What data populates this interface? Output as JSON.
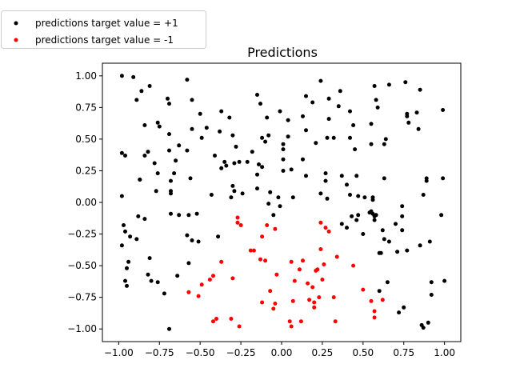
{
  "chart_data": {
    "type": "scatter",
    "title": "Predictions",
    "xlabel": "",
    "ylabel": "",
    "xlim": [
      -1.1,
      1.1
    ],
    "ylim": [
      -1.1,
      1.1
    ],
    "x_ticks": [
      -1.0,
      -0.75,
      -0.5,
      -0.25,
      0.0,
      0.25,
      0.5,
      0.75,
      1.0
    ],
    "x_tick_labels": [
      "−1.00",
      "−0.75",
      "−0.50",
      "−0.25",
      "0.00",
      "0.25",
      "0.50",
      "0.75",
      "1.00"
    ],
    "y_ticks": [
      1.0,
      0.75,
      0.5,
      0.25,
      0.0,
      -0.25,
      -0.5,
      -0.75,
      -1.0
    ],
    "y_tick_labels": [
      "1.00",
      "0.75",
      "0.50",
      "0.25",
      "0.00",
      "−0.25",
      "−0.50",
      "−0.75",
      "−1.00"
    ],
    "grid": false,
    "legend_position": "outside-top-left",
    "series": [
      {
        "name": "predictions target value = +1",
        "color": "#000000",
        "points": [
          [
            -0.98,
            1.0
          ],
          [
            -0.91,
            0.99
          ],
          [
            -0.81,
            0.92
          ],
          [
            -0.86,
            0.88
          ],
          [
            -0.89,
            0.81
          ],
          [
            -0.7,
            0.82
          ],
          [
            -0.58,
            0.97
          ],
          [
            -0.69,
            0.78
          ],
          [
            -0.55,
            0.81
          ],
          [
            -0.5,
            0.7
          ],
          [
            -0.76,
            0.63
          ],
          [
            -0.75,
            0.6
          ],
          [
            -0.84,
            0.61
          ],
          [
            -0.69,
            0.54
          ],
          [
            -0.55,
            0.58
          ],
          [
            -0.46,
            0.59
          ],
          [
            -0.37,
            0.72
          ],
          [
            -0.32,
            0.67
          ],
          [
            -0.38,
            0.56
          ],
          [
            -0.3,
            0.53
          ],
          [
            -0.15,
            0.85
          ],
          [
            -0.13,
            0.78
          ],
          [
            -0.09,
            0.67
          ],
          [
            -0.01,
            0.72
          ],
          [
            0.04,
            0.65
          ],
          [
            0.13,
            0.68
          ],
          [
            0.15,
            0.84
          ],
          [
            0.19,
            0.79
          ],
          [
            0.24,
            0.96
          ],
          [
            0.29,
            0.82
          ],
          [
            0.35,
            0.76
          ],
          [
            0.36,
            0.88
          ],
          [
            0.42,
            0.72
          ],
          [
            0.57,
            0.92
          ],
          [
            0.58,
            0.81
          ],
          [
            0.59,
            0.75
          ],
          [
            0.66,
            0.93
          ],
          [
            0.76,
            0.95
          ],
          [
            0.85,
            0.89
          ],
          [
            0.99,
            0.73
          ],
          [
            0.77,
            0.7
          ],
          [
            0.83,
            0.71
          ],
          [
            0.77,
            0.68
          ],
          [
            0.78,
            0.63
          ],
          [
            0.84,
            0.58
          ],
          [
            -0.98,
            0.39
          ],
          [
            -0.96,
            0.37
          ],
          [
            -0.84,
            0.37
          ],
          [
            -0.82,
            0.4
          ],
          [
            -0.78,
            0.31
          ],
          [
            -0.76,
            0.23
          ],
          [
            -0.87,
            0.18
          ],
          [
            -0.69,
            0.41
          ],
          [
            -0.63,
            0.45
          ],
          [
            -0.58,
            0.41
          ],
          [
            -0.65,
            0.33
          ],
          [
            -0.66,
            0.23
          ],
          [
            -0.68,
            0.17
          ],
          [
            -0.68,
            0.09
          ],
          [
            -0.68,
            0.07
          ],
          [
            -0.77,
            0.09
          ],
          [
            -0.49,
            0.51
          ],
          [
            -0.41,
            0.37
          ],
          [
            -0.37,
            0.27
          ],
          [
            -0.35,
            0.32
          ],
          [
            -0.34,
            0.29
          ],
          [
            -0.29,
            0.31
          ],
          [
            -0.26,
            0.32
          ],
          [
            -0.28,
            0.44
          ],
          [
            -0.21,
            0.32
          ],
          [
            -0.18,
            0.4
          ],
          [
            -0.12,
            0.51
          ],
          [
            -0.1,
            0.48
          ],
          [
            -0.08,
            0.53
          ],
          [
            -0.14,
            0.3
          ],
          [
            -0.12,
            0.28
          ],
          [
            -0.15,
            0.22
          ],
          [
            0.01,
            0.46
          ],
          [
            0.01,
            0.42
          ],
          [
            0.01,
            0.34
          ],
          [
            0.01,
            0.25
          ],
          [
            0.06,
            0.26
          ],
          [
            0.04,
            0.52
          ],
          [
            0.15,
            0.57
          ],
          [
            0.21,
            0.47
          ],
          [
            0.28,
            0.51
          ],
          [
            0.32,
            0.51
          ],
          [
            0.29,
            0.66
          ],
          [
            0.42,
            0.51
          ],
          [
            0.45,
            0.42
          ],
          [
            0.55,
            0.46
          ],
          [
            0.55,
            0.62
          ],
          [
            0.63,
            0.46
          ],
          [
            0.64,
            0.5
          ],
          [
            0.44,
            0.61
          ],
          [
            0.13,
            0.34
          ],
          [
            0.15,
            0.21
          ],
          [
            0.27,
            0.23
          ],
          [
            0.27,
            0.17
          ],
          [
            0.37,
            0.21
          ],
          [
            0.4,
            0.14
          ],
          [
            0.46,
            0.21
          ],
          [
            -0.98,
            0.05
          ],
          [
            -0.87,
            0.18
          ],
          [
            -0.56,
            0.19
          ],
          [
            -0.43,
            0.06
          ],
          [
            -0.31,
            0.04
          ],
          [
            -0.3,
            0.13
          ],
          [
            -0.29,
            0.09
          ],
          [
            -0.24,
            0.07
          ],
          [
            -0.15,
            0.11
          ],
          [
            -0.08,
            -0.01
          ],
          [
            -0.07,
            0.08
          ],
          [
            -0.02,
            0.04
          ],
          [
            -0.01,
            -0.03
          ],
          [
            0.07,
            0.04
          ],
          [
            0.24,
            0.07
          ],
          [
            0.28,
            0.03
          ],
          [
            0.42,
            0.06
          ],
          [
            0.47,
            0.05
          ],
          [
            0.51,
            0.04
          ],
          [
            0.56,
            0.02
          ],
          [
            0.56,
            0.04
          ],
          [
            0.63,
            0.19
          ],
          [
            0.74,
            -0.03
          ],
          [
            0.89,
            0.19
          ],
          [
            0.89,
            0.17
          ],
          [
            0.99,
            0.19
          ],
          [
            0.87,
            0.06
          ],
          [
            -0.97,
            -0.18
          ],
          [
            -0.96,
            -0.23
          ],
          [
            -0.93,
            -0.27
          ],
          [
            -0.89,
            -0.29
          ],
          [
            -0.88,
            -0.11
          ],
          [
            -0.84,
            -0.13
          ],
          [
            -0.68,
            -0.09
          ],
          [
            -0.63,
            -0.1
          ],
          [
            -0.57,
            -0.1
          ],
          [
            -0.52,
            -0.09
          ],
          [
            -0.58,
            -0.26
          ],
          [
            -0.55,
            -0.3
          ],
          [
            -0.51,
            -0.31
          ],
          [
            -0.39,
            -0.27
          ],
          [
            -0.05,
            -0.1
          ],
          [
            0.37,
            -0.17
          ],
          [
            0.4,
            -0.2
          ],
          [
            0.43,
            -0.11
          ],
          [
            0.46,
            -0.14
          ],
          [
            0.47,
            -0.1
          ],
          [
            0.5,
            -0.25
          ],
          [
            0.54,
            -0.08
          ],
          [
            0.55,
            -0.07
          ],
          [
            0.56,
            -0.09
          ],
          [
            0.57,
            -0.11
          ],
          [
            0.57,
            -0.14
          ],
          [
            0.58,
            -0.1
          ],
          [
            0.6,
            -0.4
          ],
          [
            0.61,
            -0.4
          ],
          [
            0.62,
            -0.22
          ],
          [
            0.63,
            -0.29
          ],
          [
            0.66,
            -0.31
          ],
          [
            0.7,
            -0.17
          ],
          [
            0.71,
            -0.39
          ],
          [
            0.74,
            -0.11
          ],
          [
            0.74,
            -0.22
          ],
          [
            0.77,
            -0.38
          ],
          [
            0.85,
            -0.34
          ],
          [
            0.91,
            -0.31
          ],
          [
            0.98,
            -0.1
          ],
          [
            -0.98,
            -0.34
          ],
          [
            -0.94,
            -0.47
          ],
          [
            -0.95,
            -0.52
          ],
          [
            -0.96,
            -0.62
          ],
          [
            -0.95,
            -0.66
          ],
          [
            -0.81,
            -0.44
          ],
          [
            -0.82,
            -0.57
          ],
          [
            -0.8,
            -0.62
          ],
          [
            -0.76,
            -0.63
          ],
          [
            -0.72,
            -0.72
          ],
          [
            -0.69,
            -1.0
          ],
          [
            -0.64,
            -0.58
          ],
          [
            -0.57,
            -0.48
          ],
          [
            0.6,
            -0.7
          ],
          [
            0.65,
            -0.63
          ],
          [
            0.72,
            -0.87
          ],
          [
            0.75,
            -0.83
          ],
          [
            0.86,
            -0.97
          ],
          [
            0.87,
            -0.99
          ],
          [
            0.9,
            -0.95
          ],
          [
            0.92,
            -0.73
          ],
          [
            0.92,
            -0.63
          ],
          [
            1.0,
            -0.62
          ]
        ]
      },
      {
        "name": "predictions target value = -1",
        "color": "#ff0000",
        "points": [
          [
            -0.27,
            -0.12
          ],
          [
            -0.27,
            -0.16
          ],
          [
            -0.25,
            -0.18
          ],
          [
            -0.09,
            -0.18
          ],
          [
            -0.04,
            -0.21
          ],
          [
            -0.12,
            -0.27
          ],
          [
            -0.19,
            -0.38
          ],
          [
            -0.17,
            -0.38
          ],
          [
            -0.13,
            -0.45
          ],
          [
            -0.1,
            -0.46
          ],
          [
            -0.37,
            -0.47
          ],
          [
            -0.3,
            -0.6
          ],
          [
            -0.42,
            -0.58
          ],
          [
            -0.44,
            -0.61
          ],
          [
            -0.49,
            -0.65
          ],
          [
            -0.57,
            -0.71
          ],
          [
            -0.51,
            -0.74
          ],
          [
            -0.42,
            -0.94
          ],
          [
            -0.4,
            -0.92
          ],
          [
            -0.31,
            -0.92
          ],
          [
            -0.26,
            -0.98
          ],
          [
            -0.12,
            -0.79
          ],
          [
            -0.07,
            -0.7
          ],
          [
            -0.05,
            -0.84
          ],
          [
            -0.04,
            -0.8
          ],
          [
            -0.03,
            -0.57
          ],
          [
            0.06,
            -0.47
          ],
          [
            0.08,
            -0.62
          ],
          [
            0.07,
            -0.78
          ],
          [
            0.11,
            -0.53
          ],
          [
            0.13,
            -0.46
          ],
          [
            0.05,
            -0.94
          ],
          [
            0.06,
            -0.98
          ],
          [
            0.12,
            -0.94
          ],
          [
            0.16,
            -0.64
          ],
          [
            0.17,
            -0.77
          ],
          [
            0.19,
            -0.67
          ],
          [
            0.2,
            -0.79
          ],
          [
            0.2,
            -0.83
          ],
          [
            0.21,
            -0.54
          ],
          [
            0.22,
            -0.53
          ],
          [
            0.24,
            -0.16
          ],
          [
            0.26,
            -0.49
          ],
          [
            0.24,
            -0.37
          ],
          [
            0.25,
            -0.61
          ],
          [
            0.23,
            -0.75
          ],
          [
            0.27,
            -0.2
          ],
          [
            0.29,
            -0.23
          ],
          [
            0.32,
            -0.75
          ],
          [
            0.33,
            -0.94
          ],
          [
            0.34,
            -0.43
          ],
          [
            0.44,
            -0.5
          ],
          [
            0.5,
            -0.69
          ],
          [
            0.55,
            -0.78
          ],
          [
            0.57,
            -0.86
          ],
          [
            0.57,
            -0.91
          ],
          [
            0.62,
            -0.77
          ]
        ]
      }
    ]
  }
}
